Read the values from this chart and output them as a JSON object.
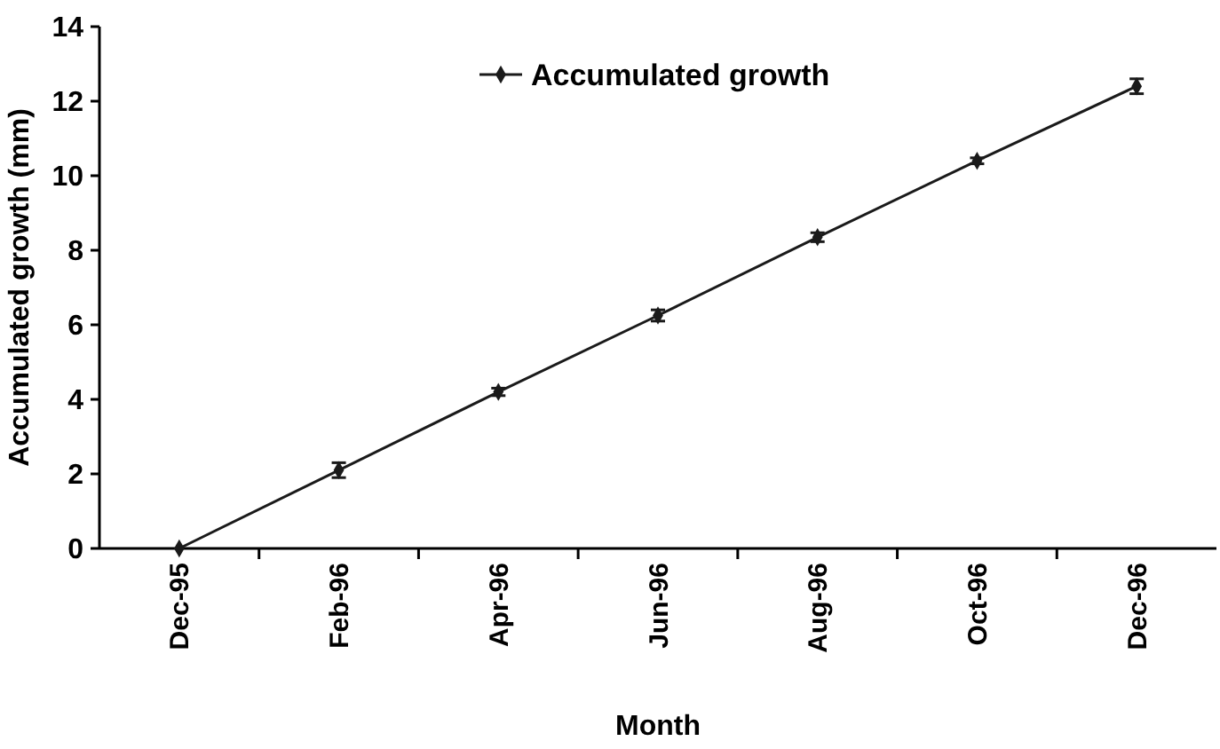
{
  "chart_data": {
    "type": "line",
    "xlabel": "Month",
    "ylabel": "Accumulated growth (mm)",
    "categories": [
      "Dec-95",
      "Feb-96",
      "Apr-96",
      "Jun-96",
      "Aug-96",
      "Oct-96",
      "Dec-96"
    ],
    "series": [
      {
        "name": "Accumulated growth",
        "color": "#1a1a1a",
        "values": [
          0,
          2.1,
          4.2,
          6.25,
          8.35,
          10.4,
          12.4
        ],
        "errors": [
          null,
          0.2,
          0.1,
          0.15,
          0.12,
          0.08,
          0.2
        ]
      }
    ],
    "ylim": [
      0,
      14
    ],
    "yticks": [
      0,
      2,
      4,
      6,
      8,
      10,
      12,
      14
    ],
    "grid": false,
    "legend": "top",
    "marker": "diamond",
    "line_style": "solid"
  }
}
